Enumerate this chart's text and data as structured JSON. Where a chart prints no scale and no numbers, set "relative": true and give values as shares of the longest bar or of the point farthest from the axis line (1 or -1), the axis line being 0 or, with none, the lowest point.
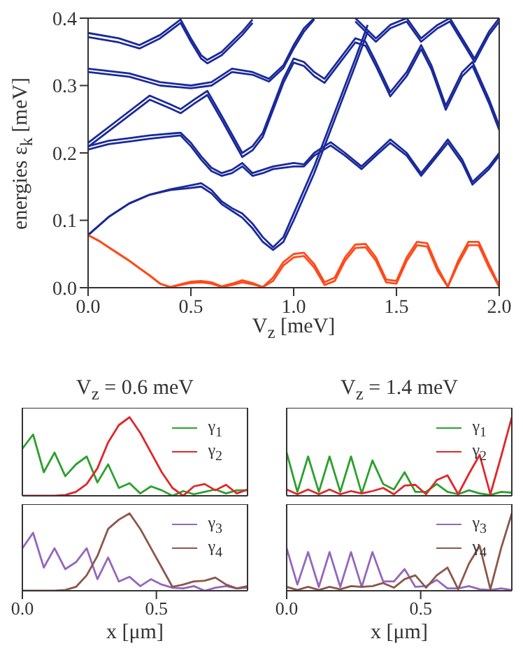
{
  "chart_data": [
    {
      "type": "line",
      "xlabel": "V$_{z}$ [meV]",
      "ylabel": "energies ε$_{k}$ [meV]",
      "xlim": [
        0,
        2
      ],
      "ylim": [
        0,
        0.4
      ],
      "xticks": [
        {
          "value": 0,
          "label": "0.0"
        },
        {
          "value": 0.5,
          "label": "0.5"
        },
        {
          "value": 1,
          "label": "1.0"
        },
        {
          "value": 1.5,
          "label": "1.5"
        },
        {
          "value": 2,
          "label": "2.0"
        }
      ],
      "yticks": [
        {
          "value": 0,
          "label": "0.0"
        },
        {
          "value": 0.1,
          "label": "0.1"
        },
        {
          "value": 0.2,
          "label": "0.2"
        },
        {
          "value": 0.3,
          "label": "0.3"
        },
        {
          "value": 0.4,
          "label": "0.4"
        }
      ],
      "marker": "none",
      "line_style": "solid",
      "series": [
        {
          "color": "#1a2a9a",
          "x": [
            0,
            0.1,
            0.2,
            0.3,
            0.4,
            0.5,
            0.55,
            0.6,
            0.65,
            0.7,
            0.75,
            0.8,
            0.85,
            0.9,
            0.95,
            1.0,
            1.1,
            1.2,
            1.3,
            1.36
          ],
          "values": [
            0.078,
            0.105,
            0.125,
            0.138,
            0.146,
            0.152,
            0.155,
            0.145,
            0.128,
            0.118,
            0.11,
            0.095,
            0.075,
            0.06,
            0.075,
            0.11,
            0.18,
            0.26,
            0.34,
            0.39
          ]
        },
        {
          "color": "#1a2a9a",
          "x": [
            0,
            0.1,
            0.2,
            0.3,
            0.4,
            0.5,
            0.55,
            0.6,
            0.65,
            0.7,
            0.75,
            0.8,
            0.85,
            0.9,
            0.95,
            1.0,
            1.1,
            1.2,
            1.3,
            1.36
          ],
          "values": [
            0.078,
            0.105,
            0.125,
            0.138,
            0.145,
            0.148,
            0.15,
            0.14,
            0.124,
            0.114,
            0.104,
            0.088,
            0.068,
            0.056,
            0.068,
            0.1,
            0.17,
            0.25,
            0.33,
            0.38
          ]
        },
        {
          "color": "#1a2a9a",
          "x": [
            0,
            0.1,
            0.2,
            0.3,
            0.45,
            0.5,
            0.55,
            0.6,
            0.65,
            0.7,
            0.75,
            0.8,
            0.85,
            0.9,
            1.0,
            1.05,
            1.1,
            1.18,
            1.25,
            1.33,
            1.4,
            1.47,
            1.55,
            1.62,
            1.7,
            1.75,
            1.82,
            1.87,
            1.95,
            2.0
          ],
          "values": [
            0.21,
            0.218,
            0.222,
            0.226,
            0.23,
            0.215,
            0.195,
            0.178,
            0.17,
            0.175,
            0.185,
            0.17,
            0.175,
            0.18,
            0.185,
            0.183,
            0.2,
            0.216,
            0.2,
            0.18,
            0.2,
            0.22,
            0.2,
            0.17,
            0.2,
            0.22,
            0.19,
            0.157,
            0.18,
            0.2
          ]
        },
        {
          "color": "#1a2a9a",
          "x": [
            0,
            0.1,
            0.2,
            0.3,
            0.45,
            0.5,
            0.55,
            0.6,
            0.65,
            0.7,
            0.75,
            0.8,
            0.85,
            0.9,
            1.0,
            1.05,
            1.1,
            1.18,
            1.25,
            1.33,
            1.4,
            1.47,
            1.55,
            1.62,
            1.7,
            1.75,
            1.82,
            1.87,
            1.95,
            2.0
          ],
          "values": [
            0.205,
            0.213,
            0.217,
            0.221,
            0.226,
            0.21,
            0.19,
            0.173,
            0.166,
            0.17,
            0.18,
            0.166,
            0.17,
            0.176,
            0.18,
            0.18,
            0.196,
            0.211,
            0.196,
            0.176,
            0.196,
            0.215,
            0.196,
            0.166,
            0.196,
            0.215,
            0.185,
            0.153,
            0.176,
            0.196
          ]
        },
        {
          "color": "#1a2a9a",
          "x": [
            0,
            0.15,
            0.3,
            0.4,
            0.45,
            0.52,
            0.58,
            0.65,
            0.75,
            0.8,
            0.85,
            0.9,
            0.95,
            1.0,
            1.05,
            1.1,
            1.15,
            1.2,
            1.3,
            1.35,
            1.4,
            1.47,
            1.55,
            1.62,
            1.67,
            1.74,
            1.82,
            1.87,
            1.95,
            2.0
          ],
          "values": [
            0.215,
            0.25,
            0.285,
            0.272,
            0.265,
            0.28,
            0.292,
            0.255,
            0.2,
            0.21,
            0.23,
            0.27,
            0.31,
            0.34,
            0.335,
            0.32,
            0.31,
            0.33,
            0.37,
            0.365,
            0.335,
            0.29,
            0.32,
            0.36,
            0.33,
            0.27,
            0.32,
            0.335,
            0.28,
            0.24
          ]
        },
        {
          "color": "#1a2a9a",
          "x": [
            0,
            0.15,
            0.3,
            0.4,
            0.45,
            0.52,
            0.58,
            0.65,
            0.75,
            0.8,
            0.85,
            0.9,
            0.95,
            1.0,
            1.05,
            1.1,
            1.15,
            1.2,
            1.3,
            1.35,
            1.4,
            1.47,
            1.55,
            1.62,
            1.67,
            1.74,
            1.82,
            1.87,
            1.95,
            2.0
          ],
          "values": [
            0.209,
            0.244,
            0.279,
            0.266,
            0.259,
            0.274,
            0.286,
            0.249,
            0.194,
            0.204,
            0.224,
            0.264,
            0.304,
            0.334,
            0.329,
            0.314,
            0.304,
            0.324,
            0.364,
            0.359,
            0.329,
            0.284,
            0.314,
            0.354,
            0.324,
            0.264,
            0.314,
            0.329,
            0.274,
            0.234
          ]
        },
        {
          "color": "#1a2a9a",
          "x": [
            0,
            0.2,
            0.35,
            0.5,
            0.6,
            0.7,
            0.8,
            0.88,
            0.95,
            1.0,
            1.05,
            1.1
          ],
          "values": [
            0.325,
            0.318,
            0.305,
            0.3,
            0.305,
            0.325,
            0.32,
            0.31,
            0.33,
            0.36,
            0.385,
            0.4
          ]
        },
        {
          "color": "#1a2a9a",
          "x": [
            0,
            0.2,
            0.35,
            0.5,
            0.6,
            0.7,
            0.8,
            0.88,
            0.95,
            1.0,
            1.05,
            1.1
          ],
          "values": [
            0.32,
            0.313,
            0.3,
            0.296,
            0.3,
            0.32,
            0.316,
            0.306,
            0.326,
            0.355,
            0.38,
            0.398
          ]
        },
        {
          "color": "#1a2a9a",
          "x": [
            0,
            0.15,
            0.25,
            0.35,
            0.45,
            0.5,
            0.55,
            0.58,
            0.65,
            0.75,
            0.8
          ],
          "values": [
            0.378,
            0.37,
            0.36,
            0.375,
            0.398,
            0.37,
            0.345,
            0.338,
            0.35,
            0.38,
            0.398
          ]
        },
        {
          "color": "#1a2a9a",
          "x": [
            0,
            0.15,
            0.25,
            0.35,
            0.45,
            0.5,
            0.55,
            0.58,
            0.65,
            0.75,
            0.8
          ],
          "values": [
            0.372,
            0.364,
            0.355,
            0.37,
            0.393,
            0.365,
            0.34,
            0.333,
            0.345,
            0.375,
            0.393
          ]
        },
        {
          "color": "#1a2a9a",
          "x": [
            1.3,
            1.4,
            1.47,
            1.55,
            1.62,
            1.7,
            1.76,
            1.82,
            1.88,
            1.95,
            2.0
          ],
          "values": [
            0.4,
            0.37,
            0.39,
            0.4,
            0.37,
            0.39,
            0.4,
            0.37,
            0.34,
            0.38,
            0.4
          ]
        },
        {
          "color": "#1a2a9a",
          "x": [
            1.3,
            1.4,
            1.47,
            1.55,
            1.62,
            1.7,
            1.76,
            1.82,
            1.88,
            1.95,
            2.0
          ],
          "values": [
            0.395,
            0.365,
            0.385,
            0.395,
            0.365,
            0.385,
            0.395,
            0.365,
            0.335,
            0.375,
            0.395
          ]
        },
        {
          "color": "#ff4a1a",
          "x": [
            0,
            0.05,
            0.1,
            0.15,
            0.2,
            0.25,
            0.3,
            0.35,
            0.4,
            0.45,
            0.5,
            0.55,
            0.6,
            0.65,
            0.7,
            0.75,
            0.8,
            0.85,
            0.9,
            0.95,
            1.0,
            1.05,
            1.1,
            1.15,
            1.2,
            1.25,
            1.3,
            1.35,
            1.4,
            1.45,
            1.5,
            1.55,
            1.6,
            1.65,
            1.7,
            1.75,
            1.8,
            1.85,
            1.9,
            1.95,
            2.0
          ],
          "values": [
            0.078,
            0.07,
            0.06,
            0.05,
            0.04,
            0.029,
            0.018,
            0.006,
            0.001,
            0.005,
            0.009,
            0.01,
            0.008,
            0.002,
            0.006,
            0.011,
            0.007,
            0.001,
            0.015,
            0.038,
            0.05,
            0.052,
            0.035,
            0.008,
            0.015,
            0.045,
            0.064,
            0.065,
            0.045,
            0.012,
            0.01,
            0.045,
            0.068,
            0.066,
            0.03,
            0.002,
            0.04,
            0.068,
            0.068,
            0.035,
            0.003
          ]
        },
        {
          "color": "#ff4a1a",
          "x": [
            0,
            0.05,
            0.1,
            0.15,
            0.2,
            0.25,
            0.3,
            0.35,
            0.4,
            0.45,
            0.5,
            0.55,
            0.6,
            0.65,
            0.7,
            0.75,
            0.8,
            0.85,
            0.9,
            0.95,
            1.0,
            1.05,
            1.1,
            1.15,
            1.2,
            1.25,
            1.3,
            1.35,
            1.4,
            1.45,
            1.5,
            1.55,
            1.6,
            1.65,
            1.7,
            1.75,
            1.8,
            1.85,
            1.9,
            1.95,
            2.0
          ],
          "values": [
            0.078,
            0.07,
            0.06,
            0.05,
            0.04,
            0.029,
            0.018,
            0.006,
            0.001,
            0.004,
            0.007,
            0.008,
            0.006,
            0.001,
            0.004,
            0.008,
            0.005,
            0.001,
            0.01,
            0.033,
            0.045,
            0.047,
            0.03,
            0.004,
            0.01,
            0.04,
            0.059,
            0.06,
            0.04,
            0.008,
            0.006,
            0.04,
            0.063,
            0.061,
            0.025,
            0.001,
            0.035,
            0.063,
            0.063,
            0.03,
            0.001
          ]
        }
      ]
    },
    {
      "type": "line",
      "title": "V$_{z}$ = 0.6 meV",
      "relative": true,
      "legend": "top right",
      "tick_labels": false,
      "xlim": [
        0,
        0.84
      ],
      "xticks": [
        {
          "value": 0,
          "label": null
        },
        {
          "value": 0.5,
          "label": null
        }
      ],
      "x": [
        0,
        0.04,
        0.08,
        0.12,
        0.16,
        0.2,
        0.24,
        0.28,
        0.32,
        0.36,
        0.4,
        0.44,
        0.48,
        0.52,
        0.56,
        0.6,
        0.64,
        0.68,
        0.72,
        0.76,
        0.8,
        0.84
      ],
      "series": [
        {
          "name": "γ$_{1}$",
          "color": "#2ca02c",
          "values": [
            0.6,
            0.78,
            0.3,
            0.55,
            0.25,
            0.4,
            0.5,
            0.17,
            0.4,
            0.1,
            0.16,
            0.03,
            0.12,
            0.07,
            0,
            0.06,
            0.02,
            0.05,
            0.08,
            0.03,
            0.07,
            0.07
          ]
        },
        {
          "name": "γ$_{2}$",
          "color": "#e0262a",
          "values": [
            0,
            0,
            0,
            0,
            0.01,
            0.05,
            0.15,
            0.35,
            0.68,
            0.9,
            1.0,
            0.8,
            0.55,
            0.3,
            0.1,
            0,
            0.12,
            0.15,
            0.07,
            0.14,
            0.03,
            0.08
          ]
        }
      ]
    },
    {
      "type": "line",
      "title": "V$_{z}$ = 1.4 meV",
      "relative": true,
      "legend": "top right",
      "tick_labels": false,
      "xlim": [
        0,
        0.84
      ],
      "xticks": [
        {
          "value": 0,
          "label": null
        },
        {
          "value": 0.5,
          "label": null
        }
      ],
      "x": [
        0,
        0.04,
        0.08,
        0.12,
        0.16,
        0.2,
        0.24,
        0.28,
        0.32,
        0.36,
        0.4,
        0.44,
        0.48,
        0.52,
        0.56,
        0.6,
        0.64,
        0.68,
        0.72,
        0.76,
        0.8,
        0.84
      ],
      "series": [
        {
          "name": "γ$_{1}$",
          "color": "#2ca02c",
          "values": [
            0.55,
            0.05,
            0.5,
            0.05,
            0.5,
            0.05,
            0.5,
            0.03,
            0.45,
            0.15,
            0.08,
            0.3,
            0.05,
            0.05,
            0.15,
            0.05,
            0.02,
            0.07,
            0.03,
            0.01,
            0.05,
            0.04
          ]
        },
        {
          "name": "γ$_{2}$",
          "color": "#e0262a",
          "values": [
            0.08,
            0.02,
            0.08,
            0.02,
            0.08,
            0.02,
            0.06,
            0.03,
            0.06,
            0.1,
            0.02,
            0.13,
            0.14,
            0.02,
            0.2,
            0.26,
            0.02,
            0.28,
            0.52,
            0.02,
            0.5,
            1.0
          ]
        }
      ]
    },
    {
      "type": "line",
      "xlabel": "x [μm]",
      "relative": true,
      "legend": "top right",
      "tick_labels": "x",
      "xlim": [
        0,
        0.84
      ],
      "xticks": [
        {
          "value": 0,
          "label": "0.0"
        },
        {
          "value": 0.5,
          "label": "0.5"
        }
      ],
      "x": [
        0,
        0.04,
        0.08,
        0.12,
        0.16,
        0.2,
        0.24,
        0.28,
        0.32,
        0.36,
        0.4,
        0.44,
        0.48,
        0.52,
        0.56,
        0.6,
        0.64,
        0.68,
        0.72,
        0.76,
        0.8,
        0.84
      ],
      "series": [
        {
          "name": "γ$_{3}$",
          "color": "#9467bd",
          "values": [
            0.55,
            0.75,
            0.3,
            0.55,
            0.28,
            0.37,
            0.55,
            0.15,
            0.43,
            0.12,
            0.18,
            0.06,
            0.15,
            0.08,
            0.04,
            0.03,
            0.06,
            0,
            0.04,
            0.06,
            0.03,
            0.04
          ]
        },
        {
          "name": "γ$_{4}$",
          "color": "#8c564b",
          "values": [
            0,
            0,
            0,
            0,
            0.01,
            0.05,
            0.2,
            0.45,
            0.8,
            0.92,
            1.0,
            0.8,
            0.55,
            0.3,
            0.05,
            0.08,
            0.12,
            0.13,
            0.17,
            0.08,
            0.03,
            0.06
          ]
        }
      ]
    },
    {
      "type": "line",
      "xlabel": "x [μm]",
      "relative": true,
      "legend": "top right",
      "tick_labels": "x",
      "xlim": [
        0,
        0.84
      ],
      "xticks": [
        {
          "value": 0,
          "label": "0.0"
        },
        {
          "value": 0.5,
          "label": "0.5"
        }
      ],
      "x": [
        0,
        0.04,
        0.08,
        0.12,
        0.16,
        0.2,
        0.24,
        0.28,
        0.32,
        0.36,
        0.4,
        0.44,
        0.48,
        0.52,
        0.56,
        0.6,
        0.64,
        0.68,
        0.72,
        0.76,
        0.8,
        0.84
      ],
      "series": [
        {
          "name": "γ$_{3}$",
          "color": "#9467bd",
          "values": [
            0.55,
            0.08,
            0.5,
            0.05,
            0.5,
            0.05,
            0.5,
            0.05,
            0.5,
            0.12,
            0.12,
            0.28,
            0.05,
            0.06,
            0.14,
            0.03,
            0.03,
            0.06,
            0.02,
            0.01,
            0.03,
            0.01
          ]
        },
        {
          "name": "γ$_{4}$",
          "color": "#8c564b",
          "values": [
            0.05,
            0.01,
            0.05,
            0.01,
            0.05,
            0.02,
            0.06,
            0.05,
            0.06,
            0.1,
            0.04,
            0.15,
            0.2,
            0.04,
            0.2,
            0.3,
            0.02,
            0.35,
            0.58,
            0.02,
            0.55,
            1.0
          ]
        }
      ]
    }
  ]
}
